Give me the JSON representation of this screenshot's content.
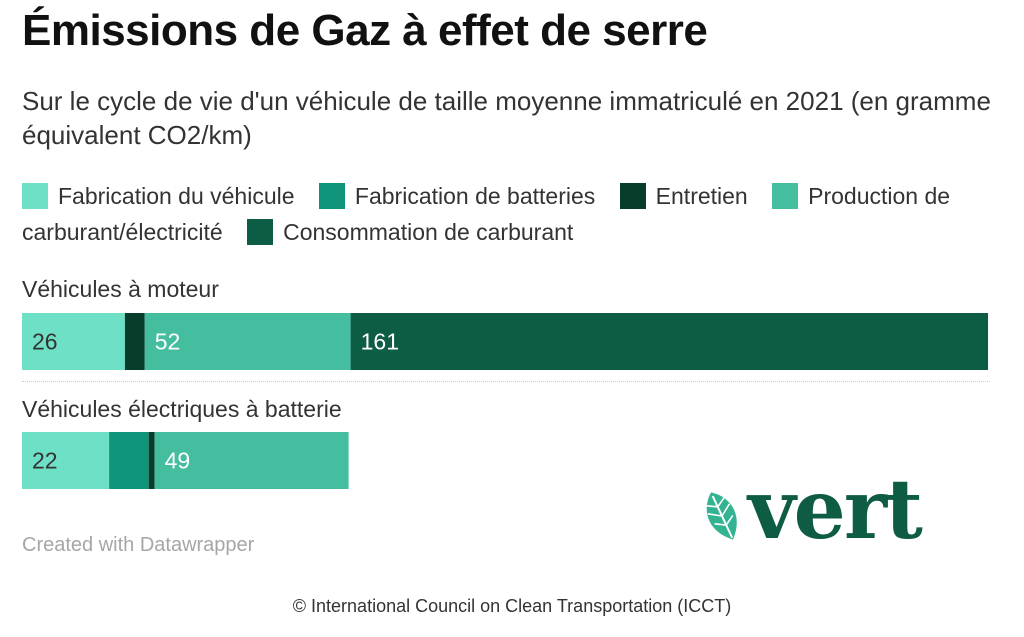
{
  "title": "Émissions de Gaz à effet de serre",
  "subtitle": "Sur le cycle de vie d'un véhicule de taille moyenne immatriculé en 2021 (en gramme équivalent CO2/km)",
  "credit": "Created with Datawrapper",
  "source": "© International Council on Clean Transportation (ICCT)",
  "logo": {
    "text": "vert",
    "icon": "leaf-icon"
  },
  "colors": {
    "fabrication_vehicule": "#6ee0c5",
    "fabrication_batteries": "#10957a",
    "entretien": "#083d2c",
    "production": "#45bd9f",
    "consommation": "#0c5c46"
  },
  "chart_data": {
    "type": "bar",
    "orientation": "horizontal",
    "stacked": true,
    "title": "Émissions de Gaz à effet de serre",
    "subtitle": "Sur le cycle de vie d'un véhicule de taille moyenne immatriculé en 2021 (en gramme équivalent CO2/km)",
    "legend_position": "top",
    "categories": [
      "Véhicules à moteur",
      "Véhicules électriques à batterie"
    ],
    "series": [
      {
        "name": "Fabrication du véhicule",
        "values": [
          26,
          22
        ],
        "color": "#6ee0c5"
      },
      {
        "name": "Fabrication de batteries",
        "values": [
          0,
          10
        ],
        "color": "#10957a"
      },
      {
        "name": "Entretien",
        "values": [
          5,
          1.5
        ],
        "color": "#083d2c"
      },
      {
        "name": "Production de carburant/électricité",
        "values": [
          52,
          49
        ],
        "color": "#45bd9f"
      },
      {
        "name": "Consommation de carburant",
        "values": [
          161,
          0
        ],
        "color": "#0c5c46"
      }
    ],
    "data_labels": [
      [
        "26",
        "",
        "",
        "52",
        "161"
      ],
      [
        "22",
        "",
        "",
        "49",
        ""
      ]
    ],
    "xlim": [
      0,
      244.5
    ]
  }
}
